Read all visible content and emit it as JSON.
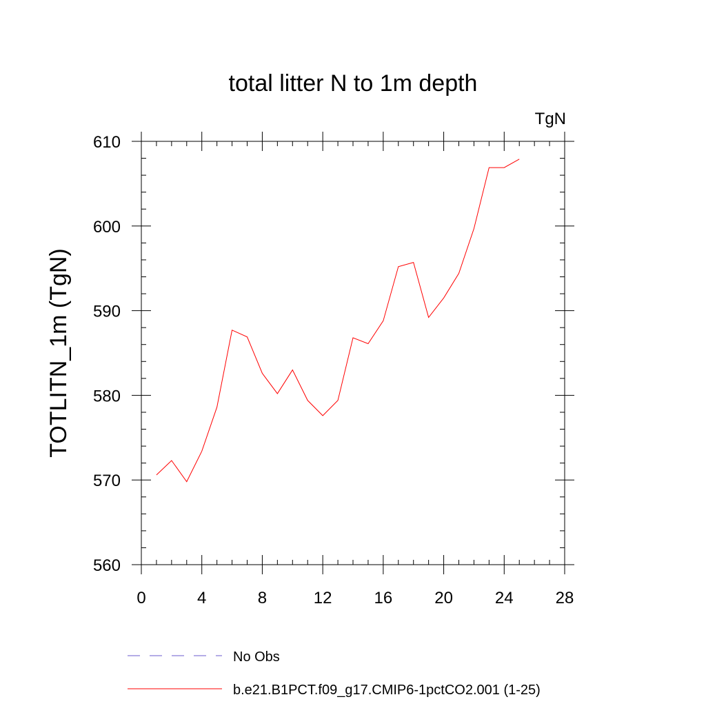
{
  "chart_data": {
    "type": "line",
    "title": "total litter N to 1m depth",
    "units_label": "TgN",
    "ylabel": "TOTLITN_1m  (TgN)",
    "xlabel": "",
    "xlim": [
      0,
      28
    ],
    "ylim": [
      560,
      610
    ],
    "xticks": [
      0,
      4,
      8,
      12,
      16,
      20,
      24,
      28
    ],
    "yticks": [
      560,
      570,
      580,
      590,
      600,
      610
    ],
    "x": [
      1,
      2,
      3,
      4,
      5,
      6,
      7,
      8,
      9,
      10,
      11,
      12,
      13,
      14,
      15,
      16,
      17,
      18,
      19,
      20,
      21,
      22,
      23,
      24,
      25
    ],
    "series": [
      {
        "name": "b.e21.B1PCT.f09_g17.CMIP6-1pctCO2.001 (1-25)",
        "color": "#ff0000",
        "dash": "solid",
        "values": [
          570.6,
          572.3,
          569.8,
          573.4,
          578.6,
          587.7,
          586.9,
          582.6,
          580.2,
          583.0,
          579.4,
          577.6,
          579.4,
          586.8,
          586.1,
          588.8,
          595.2,
          595.7,
          589.2,
          591.5,
          594.4,
          599.7,
          606.9,
          606.9,
          607.9
        ]
      }
    ],
    "legend": [
      {
        "label": "No Obs",
        "color": "#6a5acd",
        "dash": "dashed"
      },
      {
        "label": "b.e21.B1PCT.f09_g17.CMIP6-1pctCO2.001 (1-25)",
        "color": "#ff0000",
        "dash": "solid"
      }
    ],
    "legend_position": "bottom",
    "grid": false
  }
}
